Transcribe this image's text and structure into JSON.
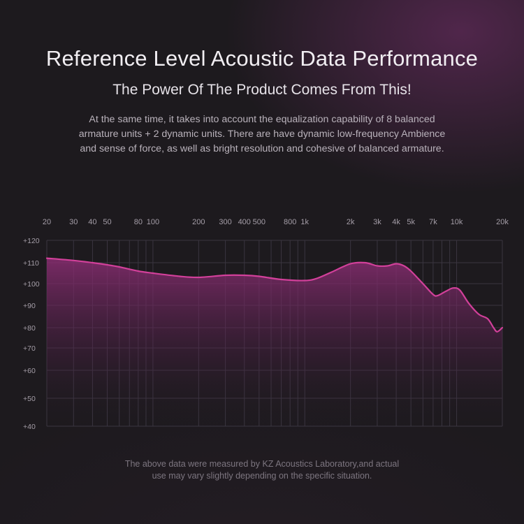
{
  "header": {
    "title": "Reference Level Acoustic Data Performance",
    "subtitle": "The Power Of The Product Comes From This!"
  },
  "description": {
    "lines": [
      "At the same time, it takes into account the equalization capability of 8 balanced",
      "armature units + 2 dynamic units. There are have dynamic low-frequency Ambience",
      "and sense of force, as well as bright resolution and cohesive of balanced armature."
    ]
  },
  "footnote": {
    "lines": [
      "The above data were measured by KZ Acoustics Laboratory,and actual",
      "use may vary slightly depending on the specific situation."
    ]
  },
  "colors": {
    "curve": "#d2409a",
    "fill_top": "#8a2d72",
    "grid": "#3a3540",
    "background": "#1d1a1e"
  },
  "chart_data": {
    "type": "area",
    "title": "",
    "xlabel": "",
    "ylabel": "",
    "x_scale": "log",
    "xlim": [
      20,
      20000
    ],
    "x_ticks": [
      {
        "value": 20,
        "label": "20"
      },
      {
        "value": 30,
        "label": "30"
      },
      {
        "value": 40,
        "label": "40"
      },
      {
        "value": 50,
        "label": "50"
      },
      {
        "value": 80,
        "label": "80"
      },
      {
        "value": 100,
        "label": "100"
      },
      {
        "value": 200,
        "label": "200"
      },
      {
        "value": 300,
        "label": "300"
      },
      {
        "value": 400,
        "label": "400"
      },
      {
        "value": 500,
        "label": "500"
      },
      {
        "value": 800,
        "label": "800"
      },
      {
        "value": 1000,
        "label": "1k"
      },
      {
        "value": 2000,
        "label": "2k"
      },
      {
        "value": 3000,
        "label": "3k"
      },
      {
        "value": 4000,
        "label": "4k"
      },
      {
        "value": 5000,
        "label": "5k"
      },
      {
        "value": 7000,
        "label": "7k"
      },
      {
        "value": 10000,
        "label": "10k"
      },
      {
        "value": 20000,
        "label": "20k"
      }
    ],
    "y_ticks": [
      {
        "value": 120,
        "label": "+120"
      },
      {
        "value": 110,
        "label": "+110"
      },
      {
        "value": 100,
        "label": "+100"
      },
      {
        "value": 90,
        "label": "+90"
      },
      {
        "value": 80,
        "label": "+80"
      },
      {
        "value": 70,
        "label": "+70"
      },
      {
        "value": 60,
        "label": "+60"
      },
      {
        "value": 50,
        "label": "+50"
      },
      {
        "value": 40,
        "label": "+40"
      }
    ],
    "grid": true,
    "legend": "none",
    "series": [
      {
        "points": [
          [
            20,
            112
          ],
          [
            30,
            111
          ],
          [
            40,
            110
          ],
          [
            50,
            109
          ],
          [
            60,
            108
          ],
          [
            80,
            106
          ],
          [
            100,
            105
          ],
          [
            150,
            103.5
          ],
          [
            200,
            103
          ],
          [
            300,
            104
          ],
          [
            400,
            104
          ],
          [
            500,
            103.5
          ],
          [
            700,
            102
          ],
          [
            1000,
            101.5
          ],
          [
            1200,
            102.5
          ],
          [
            1500,
            105.5
          ],
          [
            2000,
            109.5
          ],
          [
            2500,
            110
          ],
          [
            3000,
            108.5
          ],
          [
            3500,
            108.5
          ],
          [
            4000,
            109.5
          ],
          [
            4500,
            108.5
          ],
          [
            5000,
            106
          ],
          [
            6000,
            100
          ],
          [
            7000,
            95
          ],
          [
            7500,
            94.5
          ],
          [
            8500,
            96.5
          ],
          [
            9500,
            98
          ],
          [
            10500,
            97
          ],
          [
            12000,
            91
          ],
          [
            14000,
            86
          ],
          [
            16000,
            84
          ],
          [
            17500,
            80
          ],
          [
            18500,
            78
          ],
          [
            20000,
            80
          ]
        ]
      }
    ]
  }
}
